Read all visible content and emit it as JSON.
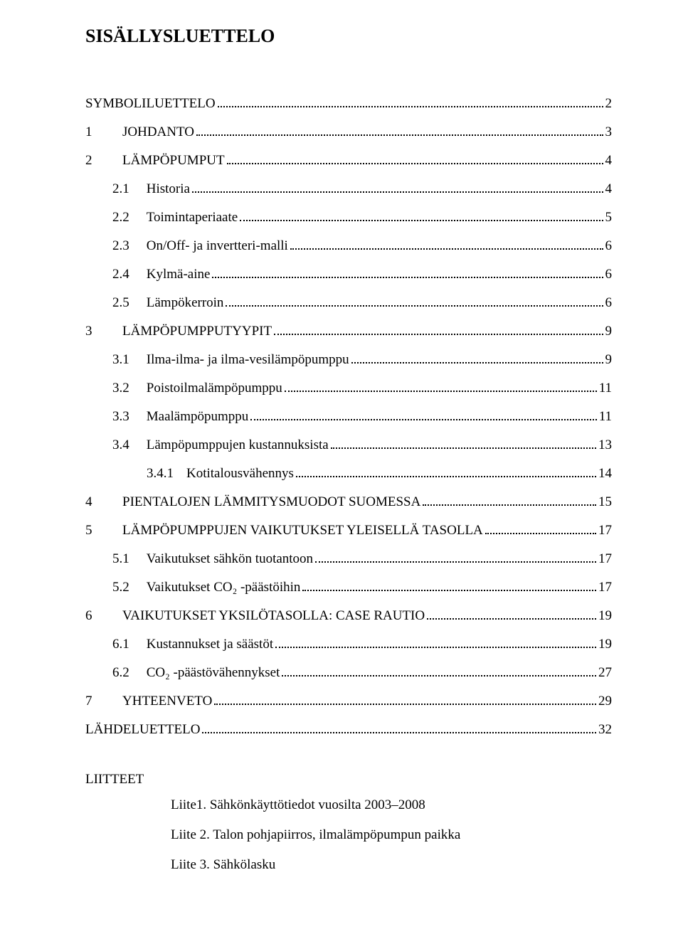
{
  "title": "SISÄLLYSLUETTELO",
  "toc": [
    {
      "level": 0,
      "num": "",
      "text": "SYMBOLILUETTELO",
      "page": "2"
    },
    {
      "level": 0,
      "num": "1",
      "text": "JOHDANTO",
      "page": "3"
    },
    {
      "level": 0,
      "num": "2",
      "text": "LÄMPÖPUMPUT",
      "page": "4"
    },
    {
      "level": 1,
      "num": "2.1",
      "text": "Historia",
      "page": "4"
    },
    {
      "level": 1,
      "num": "2.2",
      "text": "Toimintaperiaate",
      "page": "5"
    },
    {
      "level": 1,
      "num": "2.3",
      "text": "On/Off- ja invertteri-malli",
      "page": "6"
    },
    {
      "level": 1,
      "num": "2.4",
      "text": "Kylmä-aine",
      "page": "6"
    },
    {
      "level": 1,
      "num": "2.5",
      "text": "Lämpökerroin",
      "page": "6"
    },
    {
      "level": 0,
      "num": "3",
      "text": "LÄMPÖPUMPPUTYYPIT",
      "page": "9"
    },
    {
      "level": 1,
      "num": "3.1",
      "text": "Ilma-ilma- ja ilma-vesilämpöpumppu",
      "page": "9"
    },
    {
      "level": 1,
      "num": "3.2",
      "text": "Poistoilmalämpöpumppu",
      "page": "11"
    },
    {
      "level": 1,
      "num": "3.3",
      "text": "Maalämpöpumppu",
      "page": "11"
    },
    {
      "level": 1,
      "num": "3.4",
      "text": "Lämpöpumppujen kustannuksista",
      "page": "13"
    },
    {
      "level": 2,
      "num": "3.4.1",
      "text": "Kotitalousvähennys",
      "page": "14"
    },
    {
      "level": 0,
      "num": "4",
      "text": "PIENTALOJEN LÄMMITYSMUODOT SUOMESSA",
      "page": "15"
    },
    {
      "level": 0,
      "num": "5",
      "text": "LÄMPÖPUMPPUJEN VAIKUTUKSET YLEISELLÄ TASOLLA",
      "page": "17"
    },
    {
      "level": 1,
      "num": "5.1",
      "text": "Vaikutukset sähkön tuotantoon",
      "page": "17"
    },
    {
      "level": 1,
      "num": "5.2",
      "text": "Vaikutukset CO₂ -päästöihin",
      "page": "17"
    },
    {
      "level": 0,
      "num": "6",
      "text": "VAIKUTUKSET YKSILÖTASOLLA: CASE RAUTIO",
      "page": "19"
    },
    {
      "level": 1,
      "num": "6.1",
      "text": "Kustannukset ja säästöt",
      "page": "19"
    },
    {
      "level": 1,
      "num": "6.2",
      "text": "CO₂ -päästövähennykset",
      "page": "27"
    },
    {
      "level": 0,
      "num": "7",
      "text": "YHTEENVETO",
      "page": "29"
    },
    {
      "level": 0,
      "num": "",
      "text": "LÄHDELUETTELO",
      "page": "32"
    }
  ],
  "appendix_title": "LIITTEET",
  "appendix": [
    "Liite1. Sähkönkäyttötiedot vuosilta 2003–2008",
    "Liite 2. Talon pohjapiirros, ilmalämpöpumpun paikka",
    "Liite 3. Sähkölasku"
  ]
}
